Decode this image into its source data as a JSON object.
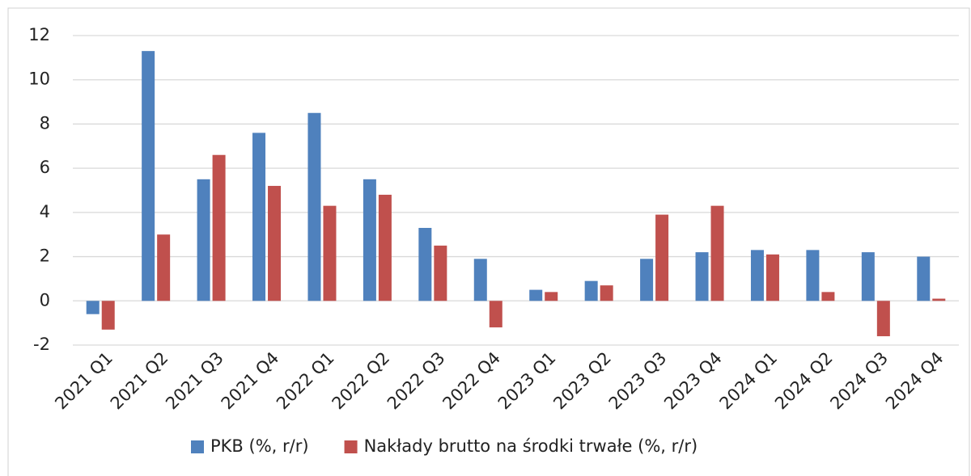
{
  "chart_data": {
    "type": "bar",
    "categories": [
      "2021 Q1",
      "2021 Q2",
      "2021 Q3",
      "2021 Q4",
      "2022 Q1",
      "2022 Q2",
      "2022 Q3",
      "2022 Q4",
      "2023 Q1",
      "2023 Q2",
      "2023 Q3",
      "2023 Q4",
      "2024 Q1",
      "2024 Q2",
      "2024 Q3",
      "2024 Q4"
    ],
    "series": [
      {
        "name": "PKB (%, r/r)",
        "color": "#4f81bd",
        "values": [
          -0.6,
          11.3,
          5.5,
          7.6,
          8.5,
          5.5,
          3.3,
          1.9,
          0.5,
          0.9,
          1.9,
          2.2,
          2.3,
          2.3,
          2.2,
          2.0
        ]
      },
      {
        "name": "Nakłady brutto na środki trwałe (%, r/r)",
        "color": "#c0504d",
        "values": [
          -1.3,
          3.0,
          6.6,
          5.2,
          4.3,
          4.8,
          2.5,
          -1.2,
          0.4,
          0.7,
          3.9,
          4.3,
          2.1,
          0.4,
          -1.6,
          0.1
        ]
      }
    ],
    "ylim": [
      -2,
      12
    ],
    "yticks": [
      -2,
      0,
      2,
      4,
      6,
      8,
      10,
      12
    ],
    "grid": true,
    "legend": "bottom"
  }
}
